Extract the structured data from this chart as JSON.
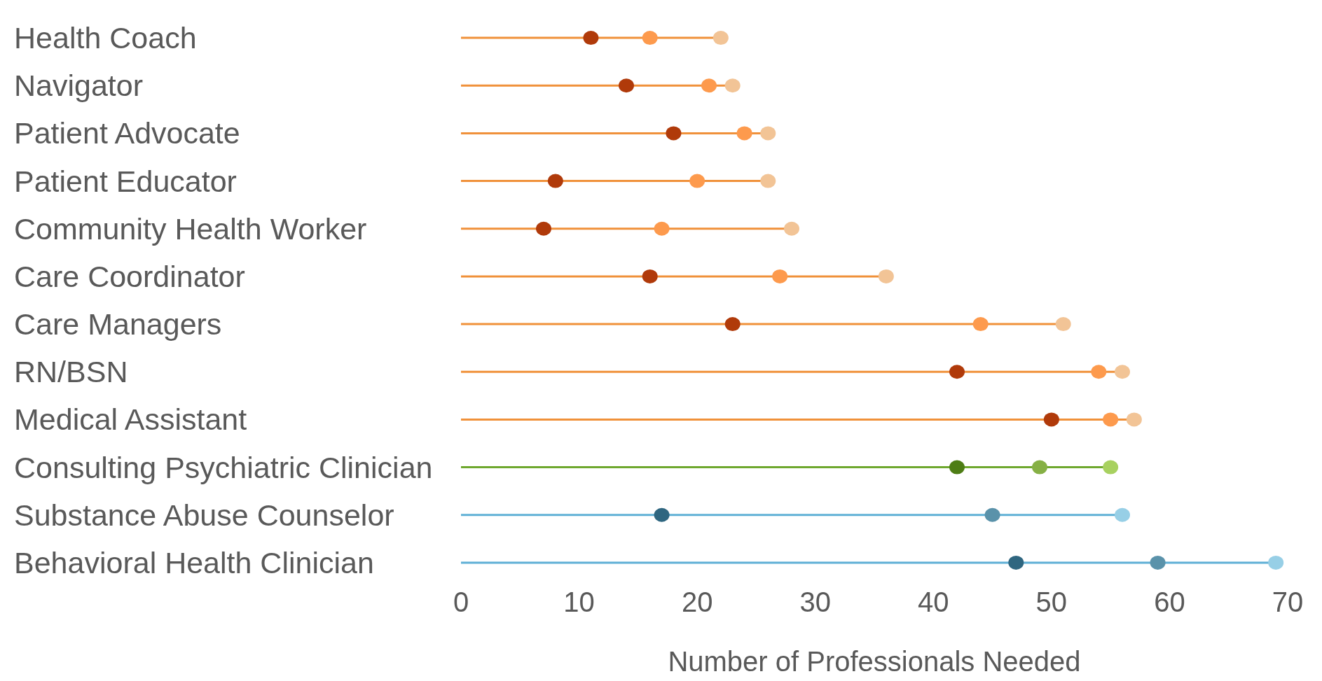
{
  "chart_data": {
    "type": "scatter",
    "orientation": "horizontal",
    "xlabel": "Number of Professionals Needed",
    "categories": [
      "Health Coach",
      "Navigator",
      "Patient Advocate",
      "Patient Educator",
      "Community Health Worker",
      "Care Coordinator",
      "Care Managers",
      "RN/BSN",
      "Medical Assistant",
      "Consulting Psychiatric Clinician",
      "Substance Abuse Counselor",
      "Behavioral Health Clinician"
    ],
    "xlim": [
      0,
      70
    ],
    "xticks": [
      0,
      10,
      20,
      30,
      40,
      50,
      60,
      70
    ],
    "grid": false,
    "legend": false,
    "marker": "circle",
    "series": [
      {
        "type": "lollipop",
        "color": "#f0913a",
        "colors": [
          "#f2c496",
          "#f2c496",
          "#f2c496",
          "#f2c496",
          "#f2c496",
          "#f2c496",
          "#f2c496",
          "#f2c496",
          "#f2c496",
          null,
          null,
          null
        ],
        "values": [
          22,
          23,
          26,
          26,
          28,
          36,
          51,
          56,
          57,
          null,
          null,
          null
        ]
      },
      {
        "type": "lollipop",
        "color": "#6ea82e",
        "colors": [
          null,
          null,
          null,
          null,
          null,
          null,
          null,
          null,
          null,
          "#a8d160",
          null,
          null
        ],
        "values": [
          null,
          null,
          null,
          null,
          null,
          null,
          null,
          null,
          null,
          55,
          null,
          null
        ]
      },
      {
        "type": "lollipop",
        "color": "#5fb0d6",
        "colors": [
          null,
          null,
          null,
          null,
          null,
          null,
          null,
          null,
          null,
          null,
          "#97cfe6",
          "#97cfe6"
        ],
        "values": [
          null,
          null,
          null,
          null,
          null,
          null,
          null,
          null,
          null,
          null,
          56,
          69
        ]
      },
      {
        "values": [
          11,
          14,
          18,
          8,
          7,
          16,
          23,
          42,
          50,
          42,
          17,
          47
        ],
        "colors": [
          "#b03a0a",
          "#b03a0a",
          "#b03a0a",
          "#b03a0a",
          "#b03a0a",
          "#b03a0a",
          "#b03a0a",
          "#b03a0a",
          "#b03a0a",
          "#4e7d15",
          "#2f6680",
          "#2f6680"
        ]
      },
      {
        "values": [
          16,
          21,
          24,
          20,
          17,
          27,
          44,
          54,
          55,
          49,
          45,
          59
        ],
        "colors": [
          "#fd9a4d",
          "#fd9a4d",
          "#fd9a4d",
          "#fd9a4d",
          "#fd9a4d",
          "#fd9a4d",
          "#fd9a4d",
          "#fd9a4d",
          "#fd9a4d",
          "#86b045",
          "#5a92aa",
          "#5a92aa"
        ]
      }
    ]
  }
}
